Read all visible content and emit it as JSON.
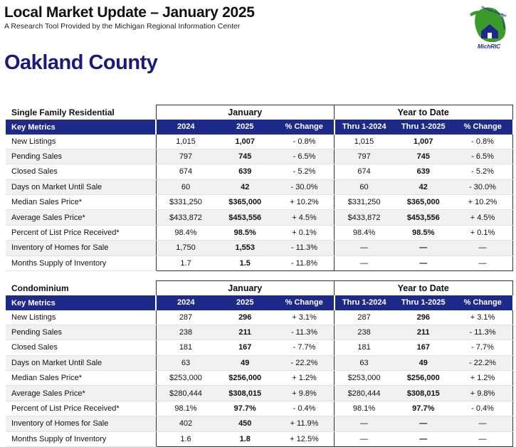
{
  "header": {
    "title": "Local Market Update – January 2025",
    "subtitle": "A Research Tool Provided by the Michigan Regional Information Center",
    "logo_text": "MichRIC",
    "logo_ring_text": "Michigan Regional Information Center"
  },
  "county": "Oakland County",
  "columns": {
    "key_metrics": "Key Metrics",
    "y2024": "2024",
    "y2025": "2025",
    "pct_change": "% Change",
    "thru_2024": "Thru 1-2024",
    "thru_2025": "Thru 1-2025",
    "pct_change_ytd": "% Change",
    "group_january": "January",
    "group_ytd": "Year to Date"
  },
  "sections": [
    {
      "title": "Single Family Residential",
      "rows": [
        {
          "metric": "New Listings",
          "v2024": "1,015",
          "v2025": "1,007",
          "chg": "- 0.8%",
          "ytd2024": "1,015",
          "ytd2025": "1,007",
          "ytdchg": "- 0.8%"
        },
        {
          "metric": "Pending Sales",
          "v2024": "797",
          "v2025": "745",
          "chg": "- 6.5%",
          "ytd2024": "797",
          "ytd2025": "745",
          "ytdchg": "- 6.5%"
        },
        {
          "metric": "Closed Sales",
          "v2024": "674",
          "v2025": "639",
          "chg": "- 5.2%",
          "ytd2024": "674",
          "ytd2025": "639",
          "ytdchg": "- 5.2%"
        },
        {
          "metric": "Days on Market Until Sale",
          "v2024": "60",
          "v2025": "42",
          "chg": "- 30.0%",
          "ytd2024": "60",
          "ytd2025": "42",
          "ytdchg": "- 30.0%"
        },
        {
          "metric": "Median Sales Price*",
          "v2024": "$331,250",
          "v2025": "$365,000",
          "chg": "+ 10.2%",
          "ytd2024": "$331,250",
          "ytd2025": "$365,000",
          "ytdchg": "+ 10.2%"
        },
        {
          "metric": "Average Sales Price*",
          "v2024": "$433,872",
          "v2025": "$453,556",
          "chg": "+ 4.5%",
          "ytd2024": "$433,872",
          "ytd2025": "$453,556",
          "ytdchg": "+ 4.5%"
        },
        {
          "metric": "Percent of List Price Received*",
          "v2024": "98.4%",
          "v2025": "98.5%",
          "chg": "+ 0.1%",
          "ytd2024": "98.4%",
          "ytd2025": "98.5%",
          "ytdchg": "+ 0.1%"
        },
        {
          "metric": "Inventory of Homes for Sale",
          "v2024": "1,750",
          "v2025": "1,553",
          "chg": "- 11.3%",
          "ytd2024": "—",
          "ytd2025": "—",
          "ytdchg": "—"
        },
        {
          "metric": "Months Supply of Inventory",
          "v2024": "1.7",
          "v2025": "1.5",
          "chg": "- 11.8%",
          "ytd2024": "—",
          "ytd2025": "—",
          "ytdchg": "—"
        }
      ]
    },
    {
      "title": "Condominium",
      "rows": [
        {
          "metric": "New Listings",
          "v2024": "287",
          "v2025": "296",
          "chg": "+ 3.1%",
          "ytd2024": "287",
          "ytd2025": "296",
          "ytdchg": "+ 3.1%"
        },
        {
          "metric": "Pending Sales",
          "v2024": "238",
          "v2025": "211",
          "chg": "- 11.3%",
          "ytd2024": "238",
          "ytd2025": "211",
          "ytdchg": "- 11.3%"
        },
        {
          "metric": "Closed Sales",
          "v2024": "181",
          "v2025": "167",
          "chg": "- 7.7%",
          "ytd2024": "181",
          "ytd2025": "167",
          "ytdchg": "- 7.7%"
        },
        {
          "metric": "Days on Market Until Sale",
          "v2024": "63",
          "v2025": "49",
          "chg": "- 22.2%",
          "ytd2024": "63",
          "ytd2025": "49",
          "ytdchg": "- 22.2%"
        },
        {
          "metric": "Median Sales Price*",
          "v2024": "$253,000",
          "v2025": "$256,000",
          "chg": "+ 1.2%",
          "ytd2024": "$253,000",
          "ytd2025": "$256,000",
          "ytdchg": "+ 1.2%"
        },
        {
          "metric": "Average Sales Price*",
          "v2024": "$280,444",
          "v2025": "$308,015",
          "chg": "+ 9.8%",
          "ytd2024": "$280,444",
          "ytd2025": "$308,015",
          "ytdchg": "+ 9.8%"
        },
        {
          "metric": "Percent of List Price Received*",
          "v2024": "98.1%",
          "v2025": "97.7%",
          "chg": "- 0.4%",
          "ytd2024": "98.1%",
          "ytd2025": "97.7%",
          "ytdchg": "- 0.4%"
        },
        {
          "metric": "Inventory of Homes for Sale",
          "v2024": "402",
          "v2025": "450",
          "chg": "+ 11.9%",
          "ytd2024": "—",
          "ytd2025": "—",
          "ytdchg": "—"
        },
        {
          "metric": "Months Supply of Inventory",
          "v2024": "1.6",
          "v2025": "1.8",
          "chg": "+ 12.5%",
          "ytd2024": "—",
          "ytd2025": "—",
          "ytdchg": "—"
        }
      ]
    }
  ],
  "colors": {
    "header_bar": "#1e2a8a",
    "county_title": "#1a1a7a",
    "logo_green": "#3a9a2a",
    "logo_blue": "#1e2a8a"
  }
}
